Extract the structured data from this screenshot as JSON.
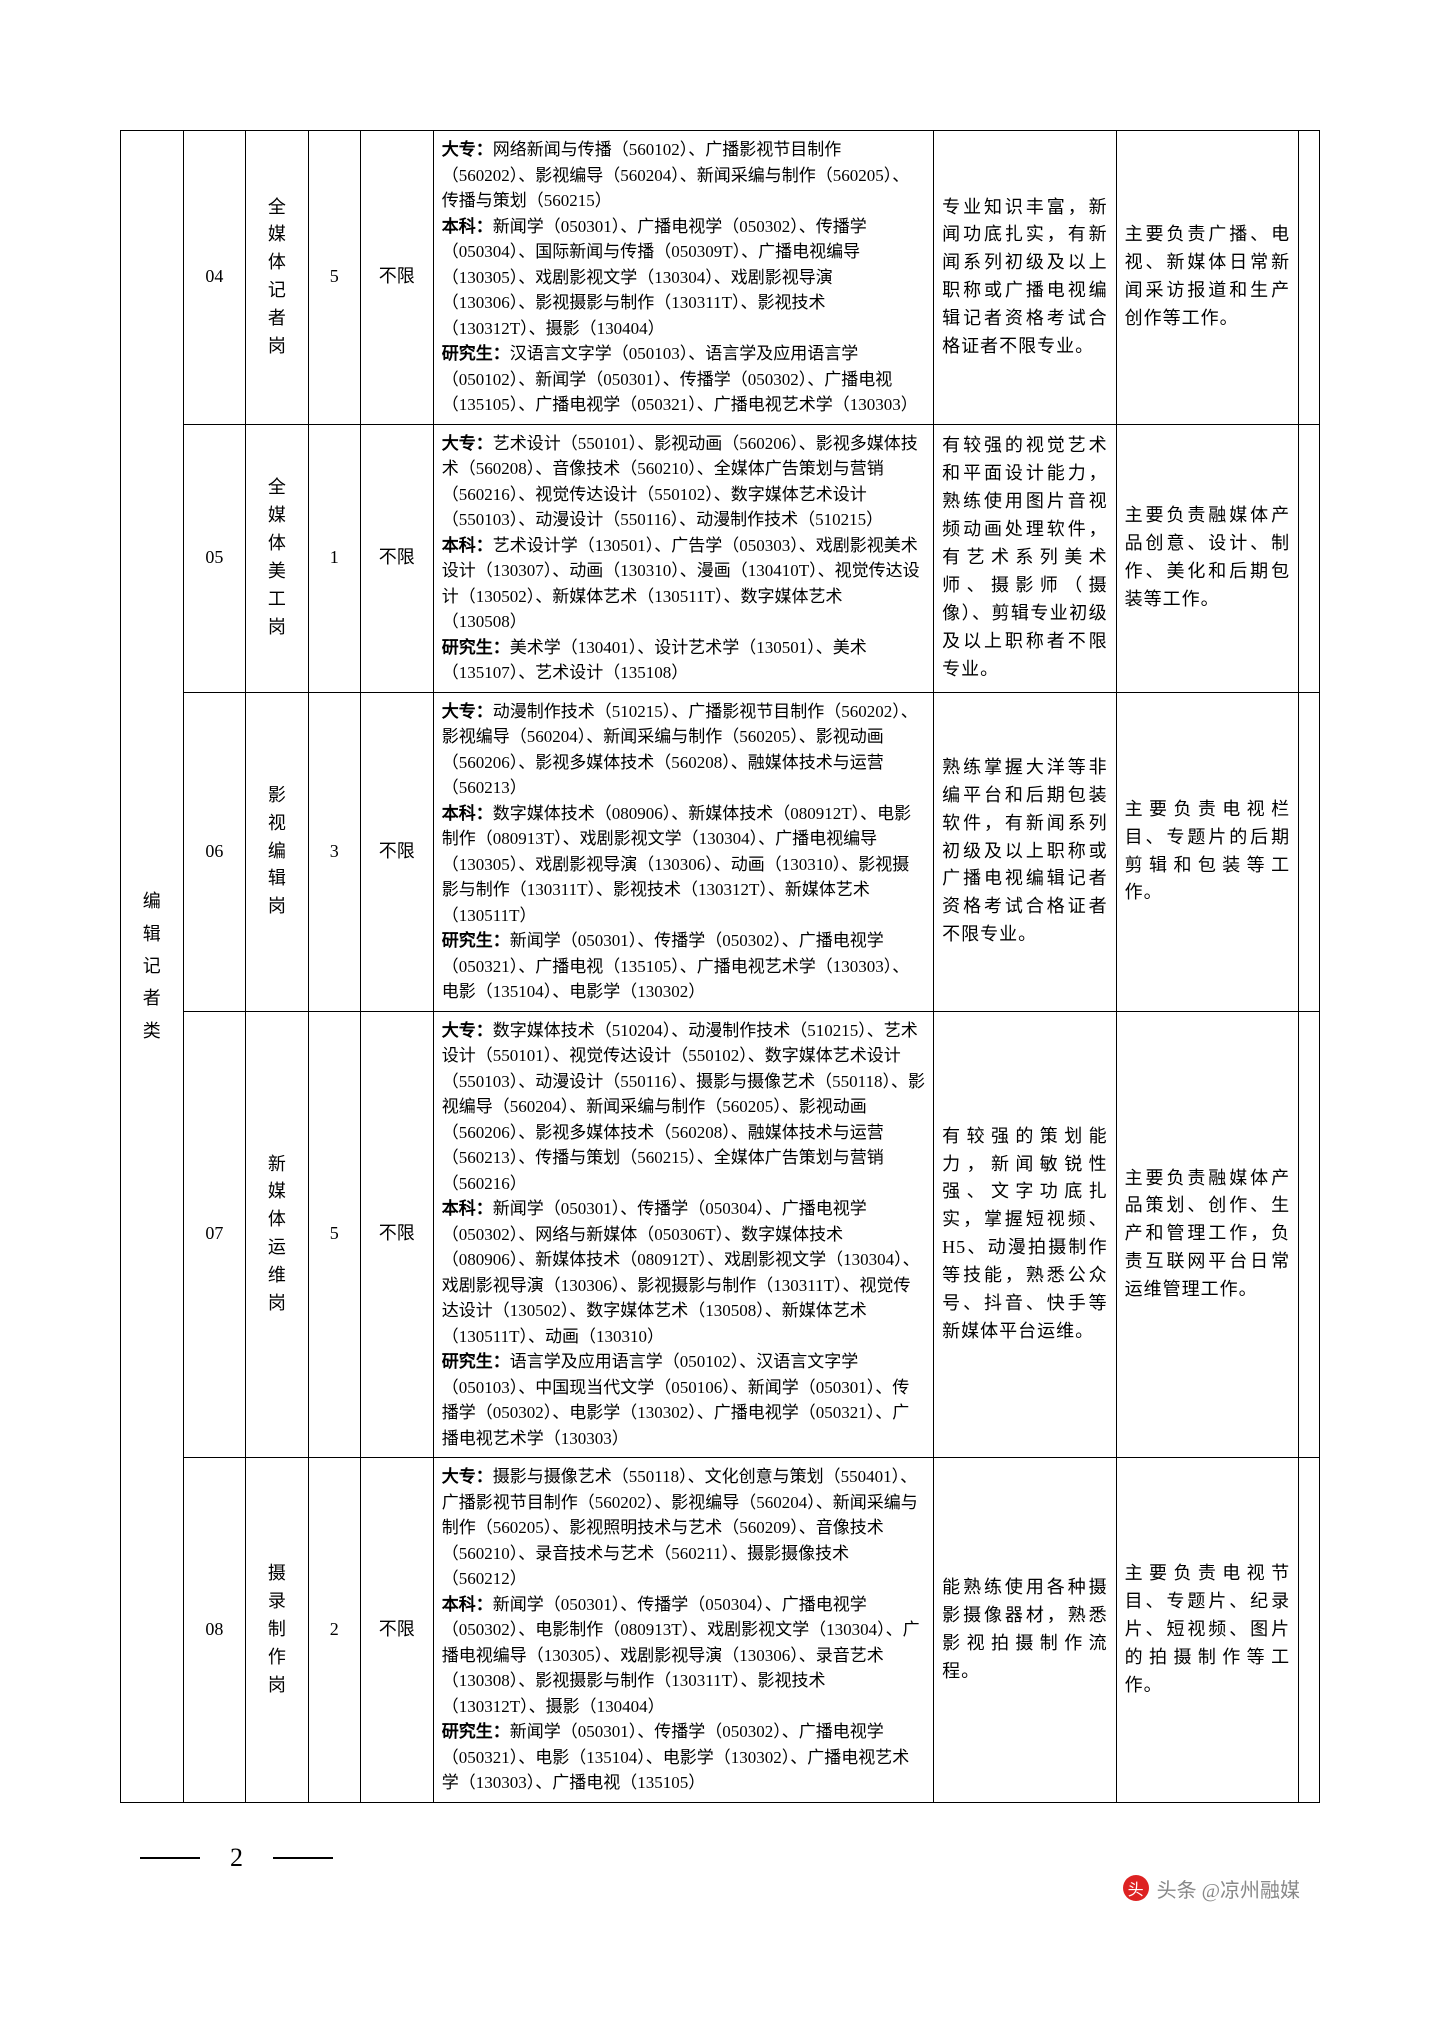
{
  "category": "编辑记者类",
  "page_number": "2",
  "watermark": "头条 @凉州融媒",
  "rows": [
    {
      "code": "04",
      "post": "全媒体记者岗",
      "count": "5",
      "limit": "不限",
      "major": "大专：网络新闻与传播（560102）、广播影视节目制作（560202）、影视编导（560204）、新闻采编与制作（560205）、传播与策划（560215）\n本科：新闻学（050301）、广播电视学（050302）、传播学（050304）、国际新闻与传播（050309T）、广播电视编导（130305）、戏剧影视文学（130304）、戏剧影视导演（130306）、影视摄影与制作（130311T）、影视技术（130312T）、摄影（130404）\n研究生：汉语言文字学（050103）、语言学及应用语言学（050102）、新闻学（050301）、传播学（050302）、广播电视（135105）、广播电视学（050321）、广播电视艺术学（130303）",
      "req": "专业知识丰富，新闻功底扎实，有新闻系列初级及以上职称或广播电视编辑记者资格考试合格证者不限专业。",
      "duty": "主要负责广播、电视、新媒体日常新闻采访报道和生产创作等工作。"
    },
    {
      "code": "05",
      "post": "全媒体美工岗",
      "count": "1",
      "limit": "不限",
      "major": "大专：艺术设计（550101）、影视动画（560206）、影视多媒体技术（560208）、音像技术（560210）、全媒体广告策划与营销（560216）、视觉传达设计（550102）、数字媒体艺术设计（550103）、动漫设计（550116）、动漫制作技术（510215）\n本科：艺术设计学（130501）、广告学（050303）、戏剧影视美术设计（130307）、动画（130310）、漫画（130410T）、视觉传达设计（130502）、新媒体艺术（130511T）、数字媒体艺术（130508）\n研究生：美术学（130401）、设计艺术学（130501）、美术（135107）、艺术设计（135108）",
      "req": "有较强的视觉艺术和平面设计能力，熟练使用图片音视频动画处理软件，有艺术系列美术师、摄影师（摄像）、剪辑专业初级及以上职称者不限专业。",
      "duty": "主要负责融媒体产品创意、设计、制作、美化和后期包装等工作。"
    },
    {
      "code": "06",
      "post": "影视编辑岗",
      "count": "3",
      "limit": "不限",
      "major": "大专：动漫制作技术（510215）、广播影视节目制作（560202）、影视编导（560204）、新闻采编与制作（560205）、影视动画（560206）、影视多媒体技术（560208）、融媒体技术与运营（560213）\n本科：数字媒体技术（080906）、新媒体技术（080912T）、电影制作（080913T）、戏剧影视文学（130304）、广播电视编导（130305）、戏剧影视导演（130306）、动画（130310）、影视摄影与制作（130311T）、影视技术（130312T）、新媒体艺术（130511T）\n研究生：新闻学（050301）、传播学（050302）、广播电视学（050321）、广播电视（135105）、广播电视艺术学（130303）、电影（135104）、电影学（130302）",
      "req": "熟练掌握大洋等非编平台和后期包装软件，有新闻系列初级及以上职称或广播电视编辑记者资格考试合格证者不限专业。",
      "duty": "主要负责电视栏目、专题片的后期剪辑和包装等工作。"
    },
    {
      "code": "07",
      "post": "新媒体运维岗",
      "count": "5",
      "limit": "不限",
      "major": "大专：数字媒体技术（510204）、动漫制作技术（510215）、艺术设计（550101）、视觉传达设计（550102）、数字媒体艺术设计（550103）、动漫设计（550116）、摄影与摄像艺术（550118）、影视编导（560204）、新闻采编与制作（560205）、影视动画（560206）、影视多媒体技术（560208）、融媒体技术与运营（560213）、传播与策划（560215）、全媒体广告策划与营销（560216）\n本科：新闻学（050301）、传播学（050304）、广播电视学（050302）、网络与新媒体（050306T）、数字媒体技术（080906）、新媒体技术（080912T）、戏剧影视文学（130304）、戏剧影视导演（130306）、影视摄影与制作（130311T）、视觉传达设计（130502）、数字媒体艺术（130508）、新媒体艺术（130511T）、动画（130310）\n研究生：语言学及应用语言学（050102）、汉语言文字学（050103）、中国现当代文学（050106）、新闻学（050301）、传播学（050302）、电影学（130302）、广播电视学（050321）、广播电视艺术学（130303）",
      "req": "有较强的策划能力，新闻敏锐性强、文字功底扎实，掌握短视频、H5、动漫拍摄制作等技能，熟悉公众号、抖音、快手等新媒体平台运维。",
      "duty": "主要负责融媒体产品策划、创作、生产和管理工作，负责互联网平台日常运维管理工作。"
    },
    {
      "code": "08",
      "post": "摄录制作岗",
      "count": "2",
      "limit": "不限",
      "major": "大专：摄影与摄像艺术（550118）、文化创意与策划（550401）、广播影视节目制作（560202）、影视编导（560204）、新闻采编与制作（560205）、影视照明技术与艺术（560209）、音像技术（560210）、录音技术与艺术（560211）、摄影摄像技术（560212）\n本科：新闻学（050301）、传播学（050304）、广播电视学（050302）、电影制作（080913T）、戏剧影视文学（130304）、广播电视编导（130305）、戏剧影视导演（130306）、录音艺术（130308）、影视摄影与制作（130311T）、影视技术（130312T）、摄影（130404）\n研究生：新闻学（050301）、传播学（050302）、广播电视学（050321）、电影（135104）、电影学（130302）、广播电视艺术学（130303）、广播电视（135105）",
      "req": "能熟练使用各种摄影摄像器材，熟悉影视拍摄制作流程。",
      "duty": "主要负责电视节目、专题片、纪录片、短视频、图片的拍摄制作等工作。"
    }
  ]
}
